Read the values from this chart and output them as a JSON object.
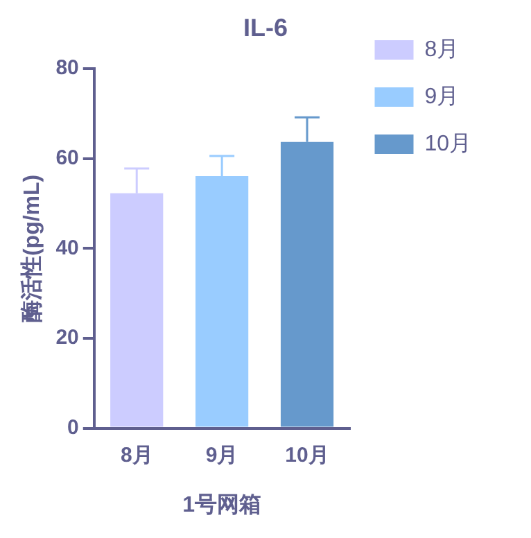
{
  "chart_data": {
    "type": "bar",
    "title": "IL-6",
    "xlabel": "1号网箱",
    "ylabel": "酶活性(pg/mL)",
    "categories": [
      "8月",
      "9月",
      "10月"
    ],
    "series": [
      {
        "name": "8月",
        "color": "#ccccff",
        "values": [
          52.3,
          null,
          null
        ],
        "errors": [
          [
            52.3,
            57.8
          ],
          null,
          null
        ]
      },
      {
        "name": "9月",
        "color": "#99ccff",
        "values": [
          null,
          56.1,
          null
        ],
        "errors": [
          null,
          [
            56.1,
            60.6
          ],
          null
        ]
      },
      {
        "name": "10月",
        "color": "#6699cc",
        "values": [
          null,
          null,
          63.7
        ],
        "errors": [
          null,
          null,
          [
            63.7,
            69.2
          ]
        ]
      }
    ],
    "ylim": [
      0,
      80
    ],
    "yticks": [
      0,
      20,
      40,
      60,
      80
    ],
    "grid": false,
    "legend": "right"
  }
}
